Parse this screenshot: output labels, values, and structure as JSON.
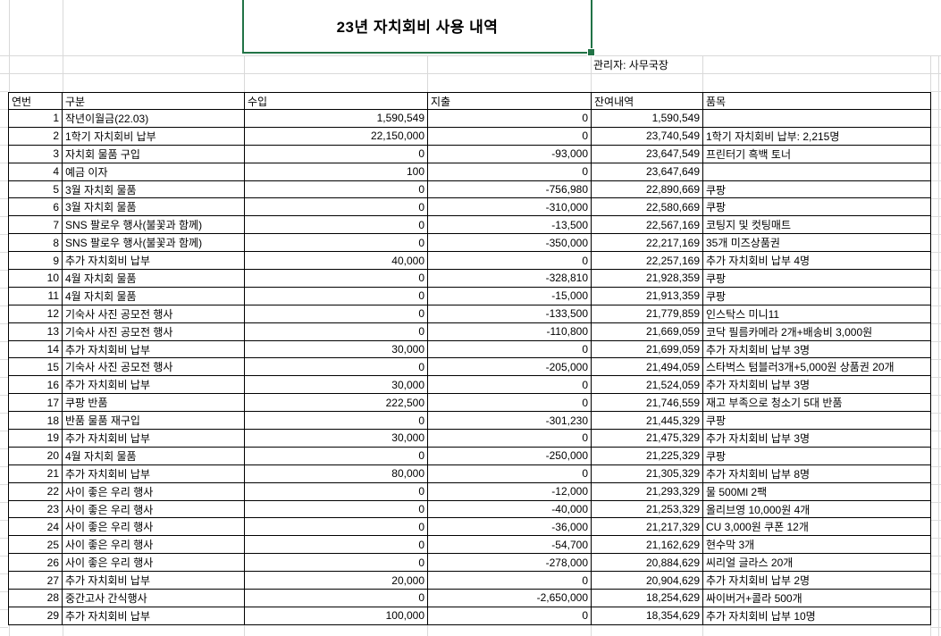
{
  "title": "23년 자치회비 사용 내역",
  "manager_label": "관리자: 사무국장",
  "colors": {
    "selection_green": "#217346",
    "cell_border": "#000000",
    "gridline": "#d9d9d9"
  },
  "table": {
    "headers": [
      "연번",
      "구분",
      "수입",
      "지출",
      "잔여내역",
      "품목"
    ],
    "rows": [
      [
        "1",
        "작년이월금(22.03)",
        "1,590,549",
        "0",
        "1,590,549",
        ""
      ],
      [
        "2",
        "1학기 자치회비 납부",
        "22,150,000",
        "0",
        "23,740,549",
        "1학기 자치회비 납부: 2,215명"
      ],
      [
        "3",
        "자치회 물품 구입",
        "0",
        "-93,000",
        "23,647,549",
        "프린터기 흑백 토너"
      ],
      [
        "4",
        "예금 이자",
        "100",
        "0",
        "23,647,649",
        ""
      ],
      [
        "5",
        "3월 자치회 물품",
        "0",
        "-756,980",
        "22,890,669",
        "쿠팡"
      ],
      [
        "6",
        "3월 자치회 물품",
        "0",
        "-310,000",
        "22,580,669",
        "쿠팡"
      ],
      [
        "7",
        "SNS 팔로우 행사(불꽃과 함께)",
        "0",
        "-13,500",
        "22,567,169",
        "코팅지 및 컷팅매트"
      ],
      [
        "8",
        "SNS 팔로우 행사(불꽃과 함께)",
        "0",
        "-350,000",
        "22,217,169",
        "35개 미즈상품권"
      ],
      [
        "9",
        "추가 자치회비 납부",
        "40,000",
        "0",
        "22,257,169",
        "추가 자치회비 납부 4명"
      ],
      [
        "10",
        "4월 자치회 물품",
        "0",
        "-328,810",
        "21,928,359",
        "쿠팡"
      ],
      [
        "11",
        "4월 자치회 물품",
        "0",
        "-15,000",
        "21,913,359",
        "쿠팡"
      ],
      [
        "12",
        "기숙사 사진 공모전 행사",
        "0",
        "-133,500",
        "21,779,859",
        "인스탁스 미니11"
      ],
      [
        "13",
        "기숙사 사진 공모전 행사",
        "0",
        "-110,800",
        "21,669,059",
        "코닥 필름카메라 2개+배송비 3,000원"
      ],
      [
        "14",
        "추가 자치회비 납부",
        "30,000",
        "0",
        "21,699,059",
        "추가 자치회비 납부 3명"
      ],
      [
        "15",
        "기숙사 사진 공모전 행사",
        "0",
        "-205,000",
        "21,494,059",
        "스타벅스 텀블러3개+5,000원 상품권 20개"
      ],
      [
        "16",
        "추가 자치회비 납부",
        "30,000",
        "0",
        "21,524,059",
        "추가 자치회비 납부 3명"
      ],
      [
        "17",
        "쿠팡 반품",
        "222,500",
        "0",
        "21,746,559",
        "재고 부족으로 청소기 5대 반품"
      ],
      [
        "18",
        "반품 물품 재구입",
        "0",
        "-301,230",
        "21,445,329",
        "쿠팡"
      ],
      [
        "19",
        "추가 자치회비 납부",
        "30,000",
        "0",
        "21,475,329",
        "추가 자치회비 납부 3명"
      ],
      [
        "20",
        "4월 자치회 물품",
        "0",
        "-250,000",
        "21,225,329",
        "쿠팡"
      ],
      [
        "21",
        "추가 자치회비 납부",
        "80,000",
        "0",
        "21,305,329",
        "추가 자치회비 납부 8명"
      ],
      [
        "22",
        "사이 좋은 우리 행사",
        "0",
        "-12,000",
        "21,293,329",
        "물 500Ml 2팩"
      ],
      [
        "23",
        "사이 좋은 우리 행사",
        "0",
        "-40,000",
        "21,253,329",
        "올리브영 10,000원 4개"
      ],
      [
        "24",
        "사이 좋은 우리 행사",
        "0",
        "-36,000",
        "21,217,329",
        "CU 3,000원 쿠폰 12개"
      ],
      [
        "25",
        "사이 좋은 우리 행사",
        "0",
        "-54,700",
        "21,162,629",
        "현수막 3개"
      ],
      [
        "26",
        "사이 좋은 우리 행사",
        "0",
        "-278,000",
        "20,884,629",
        "씨리얼 글라스 20개"
      ],
      [
        "27",
        "추가 자치회비 납부",
        "20,000",
        "0",
        "20,904,629",
        "추가 자치회비 납부 2명"
      ],
      [
        "28",
        "중간고사 간식행사",
        "0",
        "-2,650,000",
        "18,254,629",
        "싸이버거+콜라 500개"
      ],
      [
        "29",
        "추가 자치회비 납부",
        "100,000",
        "0",
        "18,354,629",
        "추가 자치회비 납부 10명"
      ]
    ]
  }
}
